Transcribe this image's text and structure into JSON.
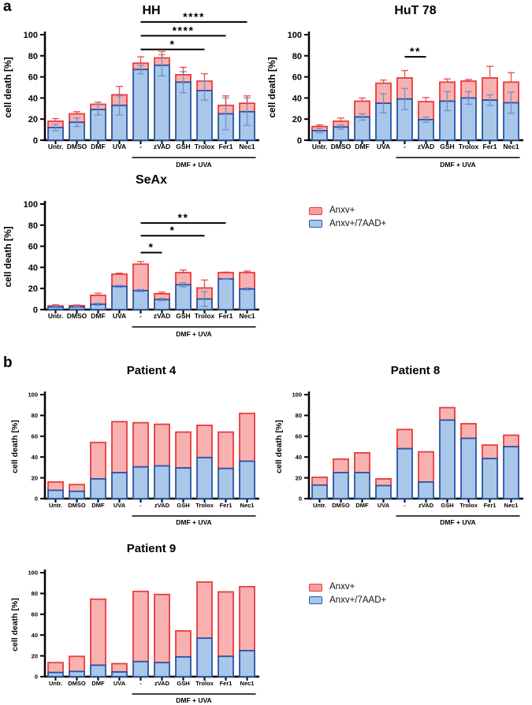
{
  "panels": {
    "a_label": "a",
    "b_label": "b"
  },
  "colors": {
    "red_stroke": "#EA3B3B",
    "red_fill": "#F69E9D",
    "blue_stroke": "#2A55A3",
    "blue_fill": "#A9C7E9",
    "blue_err": "#6C8FD0",
    "axis": "#000000"
  },
  "legend": {
    "items": [
      {
        "label": "Anxv+",
        "color_key": "red"
      },
      {
        "label": "Anxv+/7AAD+",
        "color_key": "blue"
      }
    ]
  },
  "axis": {
    "ylabel": "cell death [%]",
    "yticks": [
      0,
      20,
      40,
      60,
      80,
      100
    ],
    "ylim": [
      0,
      100
    ],
    "group_label": "DMF + UVA",
    "group_from": 4,
    "group_to": 9
  },
  "categories": [
    "Untr.",
    "DMSO",
    "DMF",
    "UVA",
    "-",
    "zVAD",
    "GSH",
    "Trolox",
    "Fer1",
    "Nec1"
  ],
  "chart_data": [
    {
      "id": "hh",
      "panel": "a",
      "type": "bar-stacked",
      "title": "HH",
      "xlabel": "",
      "ylabel": "cell death [%]",
      "ylim": [
        0,
        100
      ],
      "grid": false,
      "series": [
        {
          "name": "Anxv+/7AAD+",
          "color_key": "blue",
          "values": [
            12,
            17,
            29,
            33,
            67,
            71,
            55,
            47,
            25,
            27
          ]
        },
        {
          "name": "Anxv+ (stack total)",
          "color_key": "red",
          "values": [
            18,
            25,
            34,
            43,
            73,
            78,
            62,
            56,
            33,
            35
          ]
        }
      ],
      "err_total_up": [
        2.5,
        2,
        2,
        8,
        6,
        6,
        7,
        7,
        9,
        7
      ],
      "err_blue": [
        3,
        4,
        5,
        9,
        4,
        10,
        10,
        9,
        15,
        13
      ],
      "sig": [
        {
          "from": 4,
          "to": 9,
          "label": "****",
          "y": 112
        },
        {
          "from": 4,
          "to": 8,
          "label": "****",
          "y": 99
        },
        {
          "from": 4,
          "to": 7,
          "label": "*",
          "y": 86
        }
      ]
    },
    {
      "id": "hut78",
      "panel": "a",
      "type": "bar-stacked",
      "title": "HuT 78",
      "xlabel": "",
      "ylabel": "cell death [%]",
      "ylim": [
        0,
        100
      ],
      "grid": false,
      "series": [
        {
          "name": "Anxv+/7AAD+",
          "color_key": "blue",
          "values": [
            9,
            12.5,
            22,
            35,
            39,
            19.5,
            37,
            40,
            38,
            35.5
          ]
        },
        {
          "name": "Anxv+ (stack total)",
          "color_key": "red",
          "values": [
            13,
            18,
            37,
            54,
            59,
            36.5,
            55,
            56,
            59,
            55
          ]
        }
      ],
      "err_total_up": [
        1.5,
        3,
        3,
        3,
        7,
        4,
        3,
        1.5,
        11,
        9
      ],
      "err_blue": [
        2,
        2,
        3,
        9,
        10,
        2.5,
        9,
        6,
        5,
        10
      ],
      "sig": [
        {
          "from": 4,
          "to": 5,
          "label": "**",
          "y": 79
        }
      ]
    },
    {
      "id": "seax",
      "panel": "a",
      "type": "bar-stacked",
      "title": "SeAx",
      "xlabel": "",
      "ylabel": "cell death [%]",
      "ylim": [
        0,
        100
      ],
      "grid": false,
      "series": [
        {
          "name": "Anxv+/7AAD+",
          "color_key": "blue",
          "values": [
            2.5,
            2.5,
            5,
            22,
            18,
            9.5,
            23.5,
            10,
            29,
            19.5
          ]
        },
        {
          "name": "Anxv+ (stack total)",
          "color_key": "red",
          "values": [
            3.5,
            3.8,
            13.5,
            33.5,
            43,
            15,
            35,
            20.5,
            35,
            35
          ]
        }
      ],
      "err_total_up": [
        1,
        0.5,
        2,
        1,
        2.5,
        1.5,
        2.5,
        7.5,
        0.5,
        1.5
      ],
      "err_blue": [
        0.8,
        0.5,
        1,
        1,
        1,
        1,
        2,
        7,
        0.5,
        1
      ],
      "sig": [
        {
          "from": 4,
          "to": 8,
          "label": "**",
          "y": 82
        },
        {
          "from": 4,
          "to": 7,
          "label": "*",
          "y": 70
        },
        {
          "from": 4,
          "to": 5,
          "label": "*",
          "y": 54
        }
      ]
    },
    {
      "id": "p4",
      "panel": "b",
      "type": "bar-stacked",
      "title": "Patient 4",
      "xlabel": "",
      "ylabel": "cell death [%]",
      "ylim": [
        0,
        100
      ],
      "grid": false,
      "series": [
        {
          "name": "Anxv+/7AAD+",
          "color_key": "blue",
          "values": [
            8,
            7,
            19,
            25,
            30.5,
            31.5,
            29.5,
            39.5,
            29,
            36
          ]
        },
        {
          "name": "Anxv+ (stack total)",
          "color_key": "red",
          "values": [
            16,
            13.5,
            54,
            74,
            73,
            71.5,
            64,
            70.5,
            64,
            82
          ]
        }
      ],
      "err_total_up": null,
      "err_blue": null,
      "sig": []
    },
    {
      "id": "p8",
      "panel": "b",
      "type": "bar-stacked",
      "title": "Patient 8",
      "xlabel": "",
      "ylabel": "cell death [%]",
      "ylim": [
        0,
        100
      ],
      "grid": false,
      "series": [
        {
          "name": "Anxv+/7AAD+",
          "color_key": "blue",
          "values": [
            13,
            25,
            25,
            12.5,
            48,
            16,
            75.5,
            58,
            38.5,
            50
          ]
        },
        {
          "name": "Anxv+ (stack total)",
          "color_key": "red",
          "values": [
            20.5,
            38,
            44,
            19,
            66.5,
            45,
            87.5,
            72,
            51.5,
            61
          ]
        }
      ],
      "err_total_up": null,
      "err_blue": null,
      "sig": []
    },
    {
      "id": "p9",
      "panel": "b",
      "type": "bar-stacked",
      "title": "Patient 9",
      "xlabel": "",
      "ylabel": "cell death [%]",
      "ylim": [
        0,
        100
      ],
      "grid": false,
      "series": [
        {
          "name": "Anxv+/7AAD+",
          "color_key": "blue",
          "values": [
            4,
            5,
            11,
            4.5,
            14.5,
            13.5,
            19,
            37,
            19.5,
            25
          ]
        },
        {
          "name": "Anxv+ (stack total)",
          "color_key": "red",
          "values": [
            13.5,
            19.5,
            74.5,
            12.5,
            82,
            79,
            44,
            91,
            81.5,
            86.5
          ]
        }
      ],
      "err_total_up": null,
      "err_blue": null,
      "sig": []
    }
  ]
}
